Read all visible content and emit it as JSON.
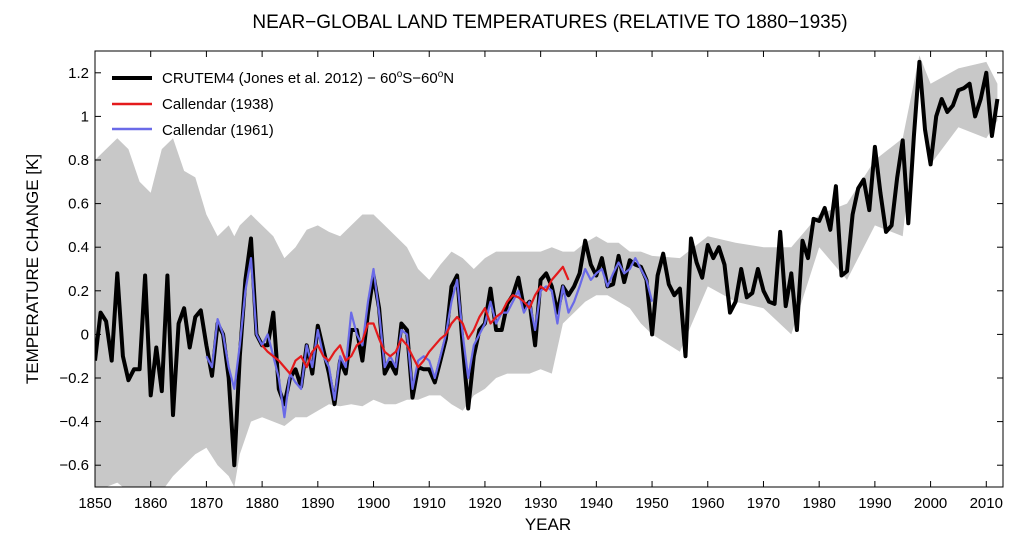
{
  "chart_data": {
    "type": "line",
    "title": "NEAR−GLOBAL LAND TEMPERATURES (RELATIVE TO 1880−1935)",
    "xlabel": "YEAR",
    "ylabel": "TEMPERATURE CHANGE  [K]",
    "xlim": [
      1850,
      2013
    ],
    "ylim": [
      -0.7,
      1.3
    ],
    "xticks": [
      1850,
      1860,
      1870,
      1880,
      1890,
      1900,
      1910,
      1920,
      1930,
      1940,
      1950,
      1960,
      1970,
      1980,
      1990,
      2000,
      2010
    ],
    "yticks": [
      -0.6,
      -0.4,
      -0.2,
      0,
      0.2,
      0.4,
      0.6,
      0.8,
      1,
      1.2
    ],
    "ytick_labels": [
      "−0.6",
      "−0.4",
      "−0.2",
      "0",
      "0.2",
      "0.4",
      "0.6",
      "0.8",
      "1",
      "1.2"
    ],
    "legend_position": "top-left",
    "legend": [
      {
        "label": "CRUTEM4 (Jones et al. 2012) − 60",
        "sup1": "o",
        "mid": "S−60",
        "sup2": "o",
        "tail": "N"
      },
      {
        "label": "Callendar (1938)"
      },
      {
        "label": "Callendar (1961)"
      }
    ],
    "colors": {
      "crutem4": "#000000",
      "callendar1938": "#e41a1c",
      "callendar1961": "#6a6ae8",
      "uncertainty": "#c8c8c8"
    },
    "uncertainty_band": {
      "name": "CRUTEM4 uncertainty range",
      "x": [
        1850,
        1852,
        1854,
        1856,
        1858,
        1860,
        1862,
        1864,
        1866,
        1868,
        1870,
        1872,
        1874,
        1875,
        1876,
        1878,
        1880,
        1882,
        1884,
        1886,
        1888,
        1890,
        1892,
        1894,
        1896,
        1898,
        1900,
        1902,
        1904,
        1906,
        1908,
        1910,
        1912,
        1914,
        1916,
        1918,
        1920,
        1922,
        1924,
        1926,
        1928,
        1930,
        1932,
        1934,
        1936,
        1938,
        1940,
        1942,
        1944,
        1946,
        1948,
        1950,
        1955,
        1960,
        1965,
        1970,
        1975,
        1980,
        1985,
        1990,
        1995,
        1998,
        2000,
        2005,
        2010,
        2012
      ],
      "upper": [
        0.8,
        0.85,
        0.9,
        0.85,
        0.7,
        0.65,
        0.85,
        0.9,
        0.75,
        0.72,
        0.55,
        0.45,
        0.5,
        0.45,
        0.5,
        0.55,
        0.5,
        0.45,
        0.35,
        0.4,
        0.48,
        0.5,
        0.47,
        0.45,
        0.5,
        0.55,
        0.55,
        0.5,
        0.45,
        0.4,
        0.3,
        0.25,
        0.32,
        0.38,
        0.35,
        0.3,
        0.35,
        0.38,
        0.38,
        0.38,
        0.38,
        0.38,
        0.4,
        0.38,
        0.38,
        0.42,
        0.45,
        0.42,
        0.42,
        0.38,
        0.38,
        0.36,
        0.35,
        0.45,
        0.42,
        0.4,
        0.4,
        0.55,
        0.6,
        0.8,
        0.9,
        1.28,
        1.15,
        1.22,
        1.25,
        1.15
      ],
      "lower": [
        -0.7,
        -0.7,
        -0.68,
        -0.72,
        -0.7,
        -0.72,
        -0.72,
        -0.65,
        -0.6,
        -0.55,
        -0.52,
        -0.6,
        -0.65,
        -0.7,
        -0.55,
        -0.4,
        -0.38,
        -0.4,
        -0.42,
        -0.38,
        -0.38,
        -0.35,
        -0.32,
        -0.33,
        -0.32,
        -0.33,
        -0.3,
        -0.32,
        -0.32,
        -0.3,
        -0.3,
        -0.28,
        -0.28,
        -0.32,
        -0.35,
        -0.28,
        -0.25,
        -0.2,
        -0.18,
        -0.18,
        -0.18,
        -0.16,
        -0.18,
        0.05,
        0.1,
        0.15,
        0.18,
        0.18,
        0.15,
        0.12,
        0.05,
        0.0,
        -0.08,
        0.22,
        0.15,
        0.12,
        0.0,
        0.4,
        0.25,
        0.5,
        0.45,
        1.15,
        0.78,
        0.95,
        0.9,
        0.98
      ]
    },
    "series": [
      {
        "name": "CRUTEM4 (Jones et al. 2012) − 60°S−60°N",
        "key": "crutem4",
        "x": [
          1850,
          1851,
          1852,
          1853,
          1854,
          1855,
          1856,
          1857,
          1858,
          1859,
          1860,
          1861,
          1862,
          1863,
          1864,
          1865,
          1866,
          1867,
          1868,
          1869,
          1870,
          1871,
          1872,
          1873,
          1874,
          1875,
          1876,
          1877,
          1878,
          1879,
          1880,
          1881,
          1882,
          1883,
          1884,
          1885,
          1886,
          1887,
          1888,
          1889,
          1890,
          1891,
          1892,
          1893,
          1894,
          1895,
          1896,
          1897,
          1898,
          1899,
          1900,
          1901,
          1902,
          1903,
          1904,
          1905,
          1906,
          1907,
          1908,
          1909,
          1910,
          1911,
          1912,
          1913,
          1914,
          1915,
          1916,
          1917,
          1918,
          1919,
          1920,
          1921,
          1922,
          1923,
          1924,
          1925,
          1926,
          1927,
          1928,
          1929,
          1930,
          1931,
          1932,
          1933,
          1934,
          1935,
          1936,
          1937,
          1938,
          1939,
          1940,
          1941,
          1942,
          1943,
          1944,
          1945,
          1946,
          1947,
          1948,
          1949,
          1950,
          1951,
          1952,
          1953,
          1954,
          1955,
          1956,
          1957,
          1958,
          1959,
          1960,
          1961,
          1962,
          1963,
          1964,
          1965,
          1966,
          1967,
          1968,
          1969,
          1970,
          1971,
          1972,
          1973,
          1974,
          1975,
          1976,
          1977,
          1978,
          1979,
          1980,
          1981,
          1982,
          1983,
          1984,
          1985,
          1986,
          1987,
          1988,
          1989,
          1990,
          1991,
          1992,
          1993,
          1994,
          1995,
          1996,
          1997,
          1998,
          1999,
          2000,
          2001,
          2002,
          2003,
          2004,
          2005,
          2006,
          2007,
          2008,
          2009,
          2010,
          2011,
          2012
        ],
        "y": [
          -0.12,
          0.1,
          0.06,
          -0.12,
          0.28,
          -0.1,
          -0.21,
          -0.16,
          -0.16,
          0.27,
          -0.28,
          -0.06,
          -0.26,
          0.27,
          -0.37,
          0.05,
          0.12,
          -0.06,
          0.08,
          0.11,
          -0.05,
          -0.19,
          0.05,
          0.0,
          -0.2,
          -0.6,
          -0.1,
          0.25,
          0.44,
          0.0,
          -0.05,
          -0.05,
          0.1,
          -0.25,
          -0.32,
          -0.2,
          -0.16,
          -0.24,
          -0.05,
          -0.18,
          0.04,
          -0.07,
          -0.18,
          -0.32,
          -0.12,
          -0.18,
          0.02,
          0.02,
          -0.12,
          0.1,
          0.27,
          0.12,
          -0.18,
          -0.13,
          -0.18,
          0.05,
          0.02,
          -0.29,
          -0.15,
          -0.16,
          -0.16,
          -0.22,
          -0.12,
          -0.02,
          0.22,
          0.27,
          -0.05,
          -0.34,
          -0.1,
          0.02,
          0.05,
          0.21,
          0.02,
          0.02,
          0.14,
          0.18,
          0.26,
          0.12,
          0.15,
          -0.05,
          0.25,
          0.28,
          0.22,
          0.1,
          0.22,
          0.18,
          0.22,
          0.28,
          0.43,
          0.32,
          0.27,
          0.35,
          0.22,
          0.23,
          0.36,
          0.24,
          0.34,
          0.32,
          0.31,
          0.25,
          0.0,
          0.27,
          0.37,
          0.23,
          0.18,
          0.21,
          -0.1,
          0.44,
          0.33,
          0.26,
          0.41,
          0.35,
          0.4,
          0.32,
          0.1,
          0.15,
          0.3,
          0.17,
          0.19,
          0.3,
          0.2,
          0.15,
          0.14,
          0.47,
          0.13,
          0.28,
          0.02,
          0.43,
          0.35,
          0.53,
          0.52,
          0.58,
          0.48,
          0.68,
          0.27,
          0.29,
          0.55,
          0.67,
          0.71,
          0.57,
          0.86,
          0.65,
          0.47,
          0.5,
          0.72,
          0.89,
          0.51,
          0.91,
          1.25,
          0.94,
          0.78,
          1.0,
          1.08,
          1.02,
          1.05,
          1.12,
          1.13,
          1.15,
          1.0,
          1.08,
          1.2,
          0.91,
          1.08
        ]
      },
      {
        "name": "Callendar (1938)",
        "key": "callendar1938",
        "x": [
          1880,
          1881,
          1882,
          1883,
          1884,
          1885,
          1886,
          1887,
          1888,
          1889,
          1890,
          1891,
          1892,
          1893,
          1894,
          1895,
          1896,
          1897,
          1898,
          1899,
          1900,
          1901,
          1902,
          1903,
          1904,
          1905,
          1906,
          1907,
          1908,
          1909,
          1910,
          1911,
          1912,
          1913,
          1914,
          1915,
          1916,
          1917,
          1918,
          1919,
          1920,
          1921,
          1922,
          1923,
          1924,
          1925,
          1926,
          1927,
          1928,
          1929,
          1930,
          1931,
          1932,
          1933,
          1934,
          1935
        ],
        "y": [
          -0.05,
          -0.08,
          -0.1,
          -0.12,
          -0.15,
          -0.18,
          -0.12,
          -0.1,
          -0.15,
          -0.08,
          -0.05,
          -0.1,
          -0.12,
          -0.08,
          -0.05,
          -0.12,
          -0.1,
          -0.05,
          -0.03,
          0.05,
          0.05,
          -0.02,
          -0.08,
          -0.1,
          -0.08,
          -0.02,
          -0.05,
          -0.1,
          -0.15,
          -0.12,
          -0.08,
          -0.05,
          -0.02,
          0.0,
          0.05,
          0.08,
          0.05,
          -0.02,
          0.02,
          0.08,
          0.12,
          0.05,
          0.08,
          0.1,
          0.15,
          0.18,
          0.17,
          0.15,
          0.12,
          0.18,
          0.22,
          0.2,
          0.25,
          0.28,
          0.31,
          0.25
        ]
      },
      {
        "name": "Callendar (1961)",
        "key": "callendar1961",
        "x": [
          1870,
          1871,
          1872,
          1873,
          1874,
          1875,
          1876,
          1877,
          1878,
          1879,
          1880,
          1881,
          1882,
          1883,
          1884,
          1885,
          1886,
          1887,
          1888,
          1889,
          1890,
          1891,
          1892,
          1893,
          1894,
          1895,
          1896,
          1897,
          1898,
          1899,
          1900,
          1901,
          1902,
          1903,
          1904,
          1905,
          1906,
          1907,
          1908,
          1909,
          1910,
          1911,
          1912,
          1913,
          1914,
          1915,
          1916,
          1917,
          1918,
          1919,
          1920,
          1921,
          1922,
          1923,
          1924,
          1925,
          1926,
          1927,
          1928,
          1929,
          1930,
          1931,
          1932,
          1933,
          1934,
          1935,
          1936,
          1937,
          1938,
          1939,
          1940,
          1941,
          1942,
          1943,
          1944,
          1945,
          1946,
          1947,
          1948,
          1949,
          1950
        ],
        "y": [
          -0.1,
          -0.15,
          0.07,
          0.0,
          -0.15,
          -0.25,
          -0.05,
          0.2,
          0.35,
          0.0,
          -0.05,
          0.0,
          -0.1,
          -0.2,
          -0.38,
          -0.18,
          -0.22,
          -0.25,
          -0.05,
          -0.15,
          0.02,
          -0.1,
          -0.15,
          -0.3,
          -0.1,
          -0.15,
          0.1,
          0.0,
          -0.05,
          0.15,
          0.3,
          0.1,
          -0.15,
          -0.1,
          -0.15,
          0.02,
          0.0,
          -0.25,
          -0.12,
          -0.1,
          -0.12,
          -0.2,
          -0.1,
          0.0,
          0.15,
          0.25,
          0.0,
          -0.2,
          -0.05,
          0.0,
          0.05,
          0.15,
          0.05,
          0.1,
          0.1,
          0.15,
          0.2,
          0.1,
          0.15,
          0.02,
          0.2,
          0.22,
          0.2,
          0.05,
          0.22,
          0.1,
          0.15,
          0.22,
          0.3,
          0.25,
          0.28,
          0.3,
          0.22,
          0.28,
          0.33,
          0.28,
          0.3,
          0.35,
          0.3,
          0.25,
          0.15
        ]
      }
    ]
  }
}
